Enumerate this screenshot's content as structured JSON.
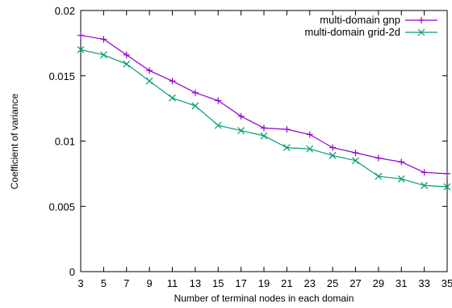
{
  "chart_data": {
    "type": "line",
    "title": "",
    "xlabel": "Number of terminal nodes in each domain",
    "ylabel": "Coefficient of variance",
    "x": [
      3,
      5,
      7,
      9,
      11,
      13,
      15,
      17,
      19,
      21,
      23,
      25,
      27,
      29,
      31,
      33,
      35
    ],
    "xlim": [
      3,
      35
    ],
    "ylim": [
      0,
      0.02
    ],
    "xticks": [
      "3",
      "5",
      "7",
      "9",
      "11",
      "13",
      "15",
      "17",
      "19",
      "21",
      "23",
      "25",
      "27",
      "29",
      "31",
      "33",
      "35"
    ],
    "yticks": [
      "0",
      "0.005",
      "0.01",
      "0.015",
      "0.02"
    ],
    "ytick_values": [
      0,
      0.005,
      0.01,
      0.015,
      0.02
    ],
    "grid": false,
    "legend_position": "top-right",
    "series": [
      {
        "name": "multi-domain gnp",
        "color": "#9400d3",
        "marker": "plus",
        "values": [
          0.0181,
          0.0178,
          0.0166,
          0.0154,
          0.0146,
          0.0137,
          0.0131,
          0.0119,
          0.011,
          0.0109,
          0.0105,
          0.0095,
          0.0091,
          0.0087,
          0.0084,
          0.0076,
          0.0075
        ]
      },
      {
        "name": "multi-domain grid-2d",
        "color": "#009e73",
        "marker": "cross",
        "values": [
          0.017,
          0.0166,
          0.0159,
          0.0146,
          0.0133,
          0.0127,
          0.0112,
          0.0108,
          0.0104,
          0.0095,
          0.0094,
          0.0089,
          0.0085,
          0.0073,
          0.0071,
          0.0066,
          0.0065
        ]
      }
    ]
  }
}
